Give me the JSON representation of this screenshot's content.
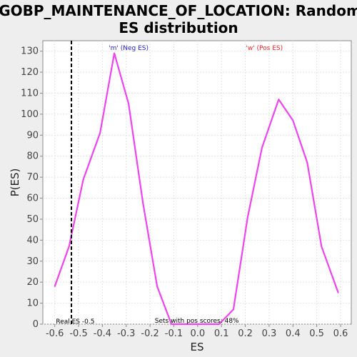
{
  "chart_data": {
    "type": "line",
    "title_line1": "GOBP_MAINTENANCE_OF_LOCATION: Random",
    "title_line2": "ES distribution",
    "xlabel": "ES",
    "ylabel": "P(ES)",
    "xlim": [
      -0.65,
      0.645
    ],
    "ylim": [
      0,
      135
    ],
    "xticks": [
      -0.6,
      -0.5,
      -0.4,
      -0.3,
      -0.2,
      -0.1,
      0.0,
      0.1,
      0.2,
      0.3,
      0.4,
      0.5,
      0.6
    ],
    "yticks": [
      0,
      10,
      20,
      30,
      40,
      50,
      60,
      70,
      80,
      90,
      100,
      110,
      120,
      130
    ],
    "grid": true,
    "series": [
      {
        "color": "#ee44ee",
        "x": [
          -0.6,
          -0.54,
          -0.48,
          -0.41,
          -0.35,
          -0.29,
          -0.23,
          -0.17,
          -0.11,
          -0.05,
          0.0,
          0.03,
          0.09,
          0.15,
          0.21,
          0.27,
          0.34,
          0.4,
          0.46,
          0.52,
          0.59
        ],
        "y": [
          18,
          37,
          69,
          91,
          129,
          105,
          58,
          18,
          0,
          0,
          0,
          0,
          0,
          7,
          51,
          84,
          107,
          97,
          77,
          37,
          15
        ]
      }
    ],
    "real_es": -0.53,
    "annotations": {
      "neg_label": "'m' (Neg ES)",
      "pos_label": "'w' (Pos ES)",
      "real_es_label": "Real ES -0.5",
      "pos_scores_label": "Sets with pos scores: 48%"
    },
    "colors": {
      "neg": "#2222cc",
      "pos": "#ee2222",
      "plot_bg": "#ffffff",
      "grid": "#e2e2e2"
    }
  }
}
